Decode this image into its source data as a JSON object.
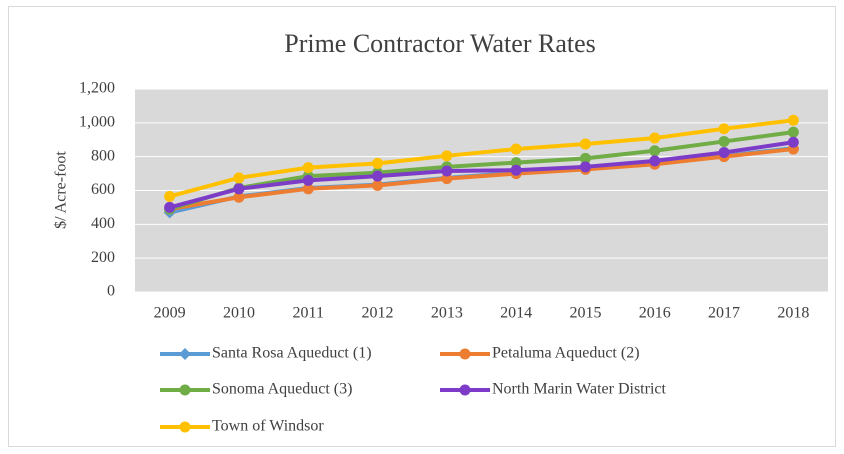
{
  "chart_data": {
    "type": "line",
    "title": "Prime Contractor Water Rates",
    "y_label": "$/ Acre-foot",
    "categories": [
      "2009",
      "2010",
      "2011",
      "2012",
      "2013",
      "2014",
      "2015",
      "2016",
      "2017",
      "2018"
    ],
    "series": [
      {
        "name": "Santa Rosa Aqueduct (1)",
        "color": "#5b9bd5",
        "marker": "diamond",
        "values": [
          470,
          565,
          615,
          635,
          675,
          705,
          730,
          760,
          805,
          850
        ]
      },
      {
        "name": "Petaluma Aqueduct (2)",
        "color": "#ed7d31",
        "marker": "circle",
        "values": [
          490,
          560,
          610,
          630,
          670,
          700,
          725,
          755,
          800,
          845
        ]
      },
      {
        "name": "Sonoma Aqueduct (3)",
        "color": "#70ad47",
        "marker": "circle",
        "values": [
          490,
          615,
          685,
          705,
          740,
          765,
          790,
          835,
          890,
          945
        ]
      },
      {
        "name": "North Marin Water District",
        "color": "#7d3cc8",
        "marker": "circle",
        "values": [
          500,
          610,
          660,
          685,
          715,
          720,
          740,
          775,
          825,
          885
        ]
      },
      {
        "name": "Town of Windsor",
        "color": "#ffc000",
        "marker": "circle",
        "values": [
          565,
          675,
          735,
          760,
          805,
          845,
          875,
          910,
          965,
          1015
        ]
      }
    ],
    "ylim": [
      0,
      1200
    ],
    "yticks": [
      0,
      200,
      400,
      600,
      800,
      {
        "value": 1000,
        "label": "1,000"
      },
      {
        "value": 1200,
        "label": "1,200"
      }
    ],
    "grid": true,
    "legend": "bottom"
  }
}
